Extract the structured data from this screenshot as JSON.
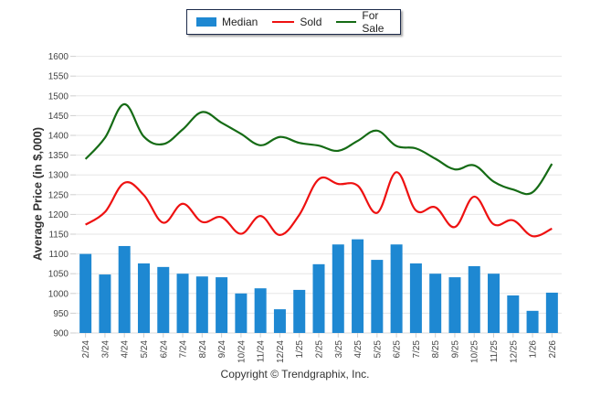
{
  "legend": {
    "items": [
      {
        "label": "Median",
        "type": "bar",
        "color": "#1e88d2"
      },
      {
        "label": "Sold",
        "type": "line",
        "color": "#ee1111"
      },
      {
        "label": "For Sale",
        "type": "line",
        "color": "#156b15"
      }
    ]
  },
  "copyright": "Copyright © Trendgraphix, Inc.",
  "chart_data": {
    "type": "bar",
    "title": "",
    "xlabel": "",
    "ylabel": "Average Price (in $,000)",
    "ylim": [
      900,
      1600
    ],
    "yticks": [
      900,
      950,
      1000,
      1050,
      1100,
      1150,
      1200,
      1250,
      1300,
      1350,
      1400,
      1450,
      1500,
      1550,
      1600
    ],
    "grid": true,
    "legend_position": "top-center",
    "categories": [
      "2/24",
      "3/24",
      "4/24",
      "5/24",
      "6/24",
      "7/24",
      "8/24",
      "9/24",
      "10/24",
      "11/24",
      "12/24",
      "1/25",
      "2/25",
      "3/25",
      "4/25",
      "5/25",
      "6/25",
      "7/25",
      "8/25",
      "9/25",
      "10/25",
      "11/25",
      "12/25",
      "1/26",
      "2/26"
    ],
    "series": [
      {
        "name": "Median",
        "type": "bar",
        "color": "#1e88d2",
        "values": [
          1100,
          1048,
          1120,
          1076,
          1067,
          1050,
          1043,
          1041,
          1000,
          1013,
          960,
          1009,
          1074,
          1124,
          1137,
          1085,
          1124,
          1076,
          1050,
          1041,
          1069,
          1050,
          995,
          956,
          1002
        ]
      },
      {
        "name": "Sold",
        "type": "line",
        "color": "#ee1111",
        "values": [
          1174,
          1206,
          1280,
          1249,
          1179,
          1227,
          1181,
          1193,
          1151,
          1196,
          1148,
          1199,
          1289,
          1277,
          1273,
          1204,
          1307,
          1210,
          1218,
          1168,
          1245,
          1175,
          1185,
          1145,
          1164
        ]
      },
      {
        "name": "For Sale",
        "type": "line",
        "color": "#156b15",
        "values": [
          1340,
          1394,
          1479,
          1397,
          1378,
          1415,
          1459,
          1432,
          1404,
          1375,
          1396,
          1381,
          1374,
          1361,
          1386,
          1412,
          1373,
          1367,
          1341,
          1314,
          1324,
          1283,
          1263,
          1256,
          1328
        ]
      }
    ]
  }
}
